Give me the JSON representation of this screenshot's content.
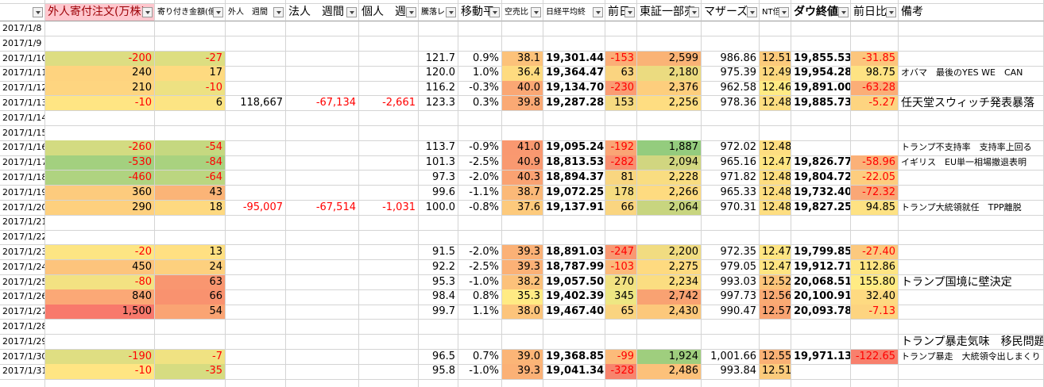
{
  "header": {
    "columns": [
      null,
      "外人寄付注文(万株)",
      "寄り付き金額(億)",
      "外人　週間",
      "法人　週間",
      "個人　週",
      "騰落レシ",
      "移動平",
      "空売比",
      "日経平均終",
      "前日",
      "東証一部売",
      "マザーズ",
      "NT倍",
      "ダウ終値",
      "前日比",
      "備考"
    ]
  },
  "rows": [
    [
      "2017/1/8"
    ],
    [
      "2017/1/9"
    ],
    [
      "2017/1/10",
      "-200",
      "-27",
      null,
      null,
      null,
      "121.7",
      "0.9%",
      "38.1",
      "19,301.44",
      "-153",
      "2,599",
      "986.86",
      "12.51",
      "19,855.53",
      "-31.85",
      null
    ],
    [
      "2017/1/11",
      "240",
      "17",
      null,
      null,
      null,
      "120.0",
      "1.0%",
      "36.4",
      "19,364.47",
      "63",
      "2,180",
      "975.39",
      "12.49",
      "19,954.28",
      "98.75",
      "オバマ　最後のYES WE　CAN"
    ],
    [
      "2017/1/12",
      "210",
      "-10",
      null,
      null,
      null,
      "116.2",
      "-0.3%",
      "40.0",
      "19,134.70",
      "-230",
      "2,376",
      "962.58",
      "12.46",
      "19,891.00",
      "-63.28",
      null
    ],
    [
      "2017/1/13",
      "-10",
      "6",
      "118,667",
      "-67,134",
      "-2,661",
      "123.3",
      "0.3%",
      "39.8",
      "19,287.28",
      "153",
      "2,256",
      "978.36",
      "12.48",
      "19,885.73",
      "-5.27",
      "任天堂スウィッチ発表暴落"
    ],
    [
      "2017/1/14"
    ],
    [
      "2017/1/15"
    ],
    [
      "2017/1/16",
      "-260",
      "-54",
      null,
      null,
      null,
      "113.7",
      "-0.9%",
      "41.0",
      "19,095.24",
      "-192",
      "1,887",
      "972.02",
      "12.48",
      null,
      null,
      "トランプ不支持率　支持率上回る"
    ],
    [
      "2017/1/17",
      "-530",
      "-84",
      null,
      null,
      null,
      "101.3",
      "-2.5%",
      "40.9",
      "18,813.53",
      "-282",
      "2,094",
      "965.16",
      "12.47",
      "19,826.77",
      "-58.96",
      "イギリス　EU単一相場撤退表明"
    ],
    [
      "2017/1/18",
      "-460",
      "-64",
      null,
      null,
      null,
      "97.3",
      "-2.0%",
      "40.3",
      "18,894.37",
      "81",
      "2,228",
      "971.82",
      "12.48",
      "19,804.72",
      "-22.05",
      null
    ],
    [
      "2017/1/19",
      "360",
      "43",
      null,
      null,
      null,
      "99.6",
      "-1.1%",
      "38.7",
      "19,072.25",
      "178",
      "2,266",
      "965.33",
      "12.48",
      "19,732.40",
      "-72.32",
      null
    ],
    [
      "2017/1/20",
      "290",
      "18",
      "-95,007",
      "-67,514",
      "-1,031",
      "100.0",
      "-0.8%",
      "37.6",
      "19,137.91",
      "66",
      "2,064",
      "970.31",
      "12.48",
      "19,827.25",
      "94.85",
      "トランプ大統領就任　TPP離脱"
    ],
    [
      "2017/1/21"
    ],
    [
      "2017/1/22"
    ],
    [
      "2017/1/23",
      "-20",
      "13",
      null,
      null,
      null,
      "91.5",
      "-2.0%",
      "39.3",
      "18,891.03",
      "-247",
      "2,200",
      "972.35",
      "12.47",
      "19,799.85",
      "-27.40",
      null
    ],
    [
      "2017/1/24",
      "450",
      "24",
      null,
      null,
      null,
      "92.2",
      "-2.5%",
      "39.3",
      "18,787.99",
      "-103",
      "2,275",
      "979.05",
      "12.47",
      "19,912.71",
      "112.86",
      null
    ],
    [
      "2017/1/25",
      "-80",
      "63",
      null,
      null,
      null,
      "95.3",
      "-1.0%",
      "38.2",
      "19,057.50",
      "270",
      "2,234",
      "993.03",
      "12.52",
      "20,068.51",
      "155.80",
      "トランプ国境に壁決定"
    ],
    [
      "2017/1/26",
      "840",
      "66",
      null,
      null,
      null,
      "98.4",
      "0.8%",
      "35.3",
      "19,402.39",
      "345",
      "2,742",
      "997.73",
      "12.56",
      "20,100.91",
      "32.40",
      null
    ],
    [
      "2017/1/27",
      "1,500",
      "54",
      null,
      null,
      null,
      "99.7",
      "1.1%",
      "38.0",
      "19,467.40",
      "65",
      "2,430",
      "990.47",
      "12.57",
      "20,093.78",
      "-7.13",
      null
    ],
    [
      "2017/1/28"
    ],
    [
      "2017/1/29",
      null,
      null,
      null,
      null,
      null,
      null,
      null,
      null,
      null,
      null,
      null,
      null,
      null,
      null,
      null,
      "トランプ暴走気味　移民問題等"
    ],
    [
      "2017/1/30",
      "-190",
      "-7",
      null,
      null,
      null,
      "96.5",
      "0.7%",
      "39.0",
      "19,368.85",
      "-99",
      "1,924",
      "1,001.66",
      "12.55",
      "19,971.13",
      "-122.65",
      "トランプ暴走　大統領令出しまくり"
    ],
    [
      "2017/1/31",
      "-10",
      "-35",
      null,
      null,
      null,
      "95.8",
      "-1.0%",
      "39.3",
      "19,041.34",
      "-328",
      "2,486",
      "993.84",
      "12.51",
      null,
      null,
      null
    ]
  ],
  "color_scales": [
    {
      "column": 1,
      "colors": [
        "#a3d07f",
        "#ffe583",
        "#f8796c"
      ]
    },
    {
      "column": 2,
      "colors": [
        "#a9d27f",
        "#ffe583",
        "#f9926f"
      ]
    },
    {
      "column": 8,
      "colors": [
        "#ffeb84",
        "#f99870"
      ]
    },
    {
      "column": 10,
      "colors": [
        "#f8846d",
        "#fdcf7f",
        "#eee783"
      ]
    },
    {
      "column": 11,
      "colors": [
        "#94cc7e",
        "#fede81",
        "#f9a272"
      ]
    },
    {
      "column": 13,
      "colors": [
        "#ffeb84",
        "#f9a472"
      ]
    },
    {
      "column": 15,
      "colors": [
        "#f8806d",
        "#fdd380",
        "#ffeb84"
      ]
    }
  ],
  "negative_red_columns": [
    1,
    2,
    3,
    4,
    5,
    10,
    15
  ],
  "bold_columns": [
    9,
    14
  ]
}
